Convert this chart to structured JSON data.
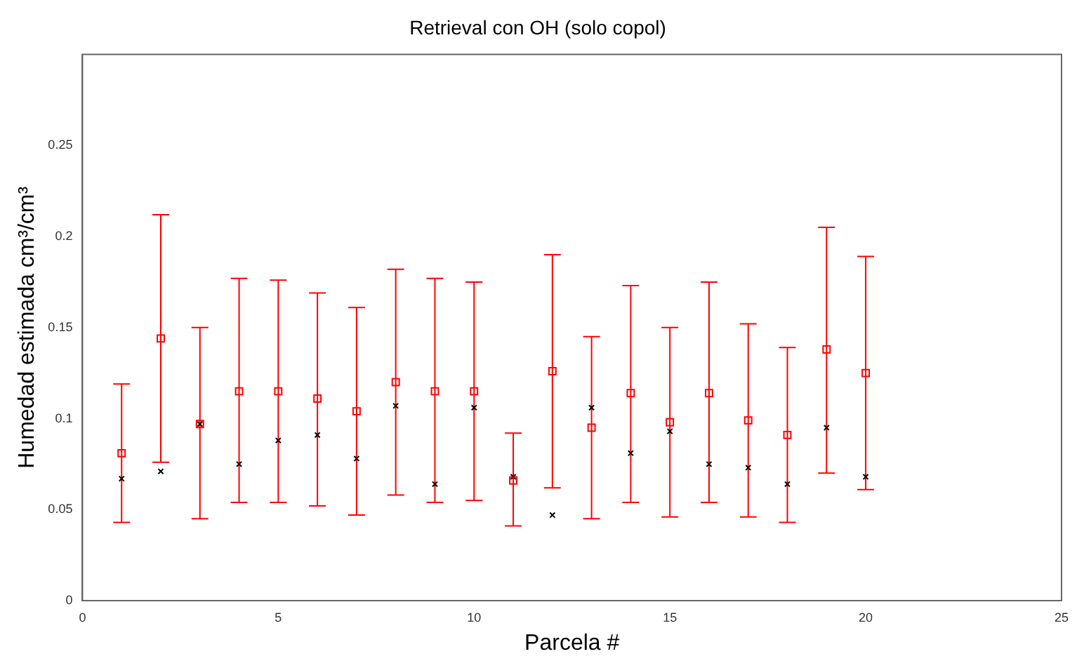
{
  "chart_data": {
    "type": "scatter",
    "title": "Retrieval con OH (solo copol)",
    "xlabel": "Parcela #",
    "ylabel": "Humedad estimada cm³/cm³",
    "x": [
      1,
      2,
      3,
      4,
      5,
      6,
      7,
      8,
      9,
      10,
      11,
      12,
      13,
      14,
      15,
      16,
      17,
      18,
      19,
      20
    ],
    "series": [
      {
        "color": "#ff0000",
        "marker": "square",
        "values": [
          0.081,
          0.144,
          0.097,
          0.115,
          0.115,
          0.111,
          0.104,
          0.12,
          0.115,
          0.115,
          0.066,
          0.126,
          0.095,
          0.114,
          0.098,
          0.114,
          0.099,
          0.091,
          0.138,
          0.125
        ],
        "errors": [
          [
            0.043,
            0.119
          ],
          [
            0.076,
            0.212
          ],
          [
            0.045,
            0.15
          ],
          [
            0.054,
            0.177
          ],
          [
            0.054,
            0.176
          ],
          [
            0.052,
            0.169
          ],
          [
            0.047,
            0.161
          ],
          [
            0.058,
            0.182
          ],
          [
            0.054,
            0.177
          ],
          [
            0.055,
            0.175
          ],
          [
            0.041,
            0.092
          ],
          [
            0.062,
            0.19
          ],
          [
            0.045,
            0.145
          ],
          [
            0.054,
            0.173
          ],
          [
            0.046,
            0.15
          ],
          [
            0.054,
            0.175
          ],
          [
            0.046,
            0.152
          ],
          [
            0.043,
            0.139
          ],
          [
            0.07,
            0.205
          ],
          [
            0.061,
            0.189
          ]
        ]
      },
      {
        "color": "#000000",
        "marker": "cross",
        "values": [
          0.067,
          0.071,
          0.097,
          0.075,
          0.088,
          0.091,
          0.078,
          0.107,
          0.064,
          0.106,
          0.068,
          0.047,
          0.106,
          0.081,
          0.093,
          0.075,
          0.073,
          0.064,
          0.095,
          0.068
        ]
      }
    ],
    "xlim": [
      0,
      25
    ],
    "xticks": [
      0,
      5,
      10,
      15,
      20,
      25
    ],
    "ylim": [
      0,
      0.3
    ],
    "yticks": [
      0,
      0.05,
      0.1,
      0.15,
      0.2,
      0.25
    ],
    "grid": false,
    "legend": false
  }
}
